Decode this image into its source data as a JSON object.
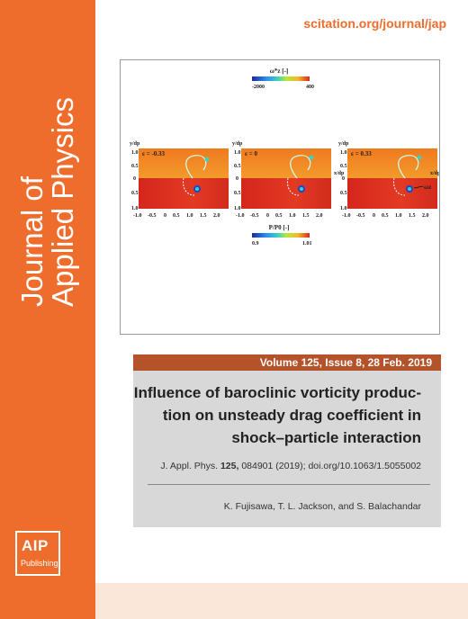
{
  "journal": {
    "title_line1": "Journal of",
    "title_line2": "Applied Physics",
    "url": "scitation.org/journal/jap"
  },
  "figure": {
    "colorbar_top": {
      "label": "ω*z [-]",
      "min_label": "-2000",
      "max_label": "400"
    },
    "colorbar_bottom": {
      "label": "P/P0 [-]",
      "min_label": "0.9",
      "max_label": "1.01"
    },
    "panels": [
      {
        "epsilon": "ε = -0.33"
      },
      {
        "epsilon": "ε = 0"
      },
      {
        "epsilon": "ε = 0.33"
      }
    ],
    "x_ticks": [
      "-1.0",
      "-0.5",
      "0",
      "0.5",
      "1.0",
      "1.5",
      "2.0"
    ],
    "y_ticks": [
      "1.0",
      "0.5",
      "0",
      "0.5",
      "1.0"
    ],
    "ylabel": "y/dp",
    "xlabel": "x/dp",
    "annotation": "ωz"
  },
  "issue": {
    "band": "Volume 125, Issue 8, 28 Feb. 2019"
  },
  "article": {
    "title_line1": "Influence of baroclinic vorticity produc-",
    "title_line2": "tion on unsteady drag coefficient in",
    "title_line3": "shock–particle interaction",
    "citation_prefix": "J. Appl. Phys. ",
    "citation_volume": "125,",
    "citation_rest": " 084901 (2019); doi.org/10.1063/1.5055002",
    "authors": "K. Fujisawa, T. L. Jackson, and S. Balachandar"
  },
  "publisher": {
    "logo_big": "AIP",
    "logo_small": "Publishing"
  },
  "colors": {
    "brand_orange": "#ee6d2d",
    "band_brown": "#b4532a",
    "article_gray": "#d8d8d8",
    "strip_peach": "#fbe6da"
  }
}
